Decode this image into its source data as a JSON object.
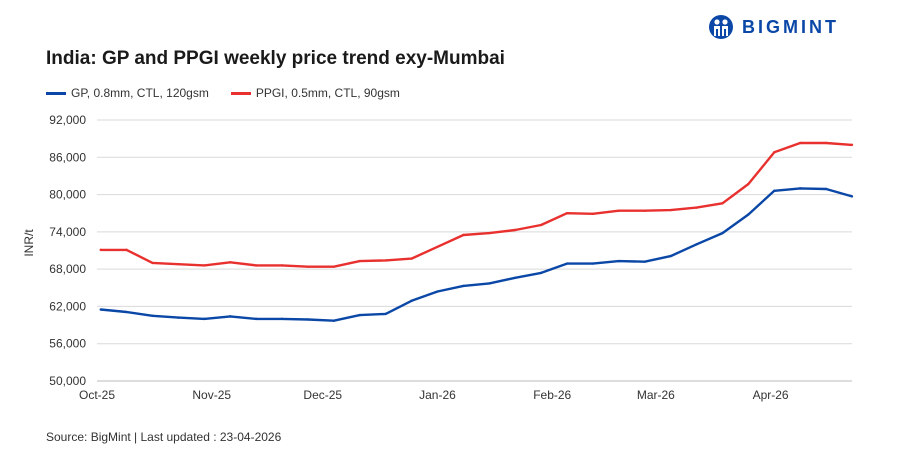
{
  "header": {
    "title": "India: GP and PPGI weekly price trend exy-Mumbai",
    "logo_text": "BIGMINT",
    "logo_icon": "bigmint-people-icon",
    "brand_color": "#0a47a6"
  },
  "footer": {
    "source": "Source: BigMint | Last updated : 23-04-2026"
  },
  "chart_data": {
    "type": "line",
    "title": "India: GP and PPGI weekly price trend exy-Mumbai",
    "xlabel": "",
    "ylabel": "INR/t",
    "ylim": [
      50000,
      92000
    ],
    "yticks": [
      50000,
      56000,
      62000,
      68000,
      74000,
      80000,
      86000,
      92000
    ],
    "ytick_labels": [
      "50,000",
      "56,000",
      "62,000",
      "68,000",
      "74,000",
      "80,000",
      "86,000",
      "92,000"
    ],
    "xlim": [
      "2025-10-01",
      "2026-04-23"
    ],
    "xticks": [
      "2025-10-01",
      "2025-11-01",
      "2025-12-01",
      "2026-01-01",
      "2026-02-01",
      "2026-03-01",
      "2026-04-01"
    ],
    "xtick_labels": [
      "Oct-25",
      "Nov-25",
      "Dec-25",
      "Jan-26",
      "Feb-26",
      "Mar-26",
      "Apr-26"
    ],
    "grid": "horizontal",
    "legend": "top-left",
    "x": [
      "2025-10-02",
      "2025-10-09",
      "2025-10-16",
      "2025-10-23",
      "2025-10-30",
      "2025-11-06",
      "2025-11-13",
      "2025-11-20",
      "2025-11-27",
      "2025-12-04",
      "2025-12-11",
      "2025-12-18",
      "2025-12-25",
      "2026-01-01",
      "2026-01-08",
      "2026-01-15",
      "2026-01-22",
      "2026-01-29",
      "2026-02-05",
      "2026-02-12",
      "2026-02-19",
      "2026-02-26",
      "2026-03-05",
      "2026-03-12",
      "2026-03-19",
      "2026-03-26",
      "2026-04-02",
      "2026-04-09",
      "2026-04-16",
      "2026-04-23"
    ],
    "series": [
      {
        "name": "GP, 0.8mm, CTL, 120gsm",
        "color": "#0a47a6",
        "values": [
          61500,
          61100,
          60500,
          60200,
          60000,
          60400,
          60000,
          60000,
          59900,
          59700,
          60600,
          60800,
          62900,
          64400,
          65300,
          65700,
          66600,
          67400,
          68900,
          68900,
          69300,
          69200,
          70100,
          72000,
          73800,
          76800,
          80600,
          81000,
          80900,
          79700
        ]
      },
      {
        "name": "PPGI, 0.5mm, CTL, 90gsm",
        "color": "#e8312f",
        "values": [
          71100,
          71100,
          69000,
          68800,
          68600,
          69100,
          68600,
          68600,
          68400,
          68400,
          69300,
          69400,
          69700,
          71600,
          73500,
          73800,
          74300,
          75100,
          77000,
          76900,
          77400,
          77400,
          77500,
          77900,
          78600,
          81700,
          86800,
          88300,
          88300,
          88000
        ]
      }
    ]
  }
}
